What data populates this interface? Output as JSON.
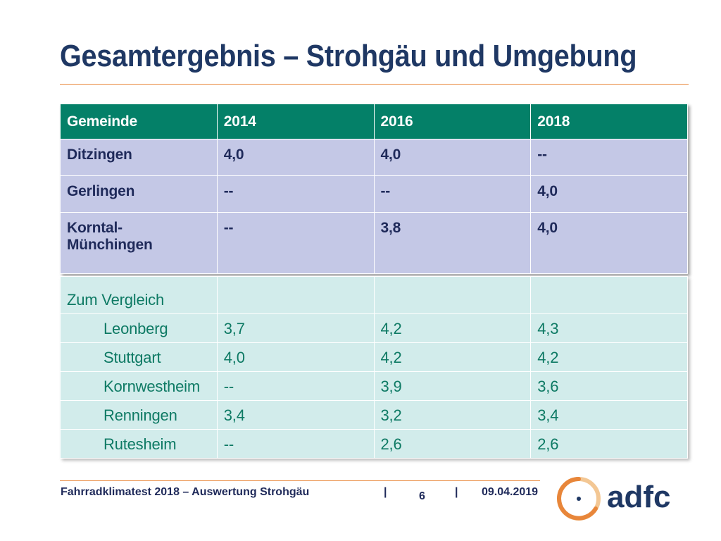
{
  "title": "Gesamtergebnis – Strohgäu und Umgebung",
  "table": {
    "headers": [
      "Gemeinde",
      "2014",
      "2016",
      "2018"
    ],
    "rows": [
      [
        "Ditzingen",
        "4,0",
        "4,0",
        "--"
      ],
      [
        "Gerlingen",
        "--",
        "--",
        "4,0"
      ],
      [
        "Korntal-",
        "--",
        "3,8",
        "4,0"
      ]
    ],
    "row3_line2": "Münchingen"
  },
  "comparison": {
    "label": "Zum Vergleich",
    "rows": [
      [
        "Leonberg",
        "3,7",
        "4,2",
        "4,3"
      ],
      [
        "Stuttgart",
        "4,0",
        "4,2",
        "4,2"
      ],
      [
        "Kornwestheim",
        "--",
        "3,9",
        "3,6"
      ],
      [
        "Renningen",
        "3,4",
        "3,2",
        "3,4"
      ],
      [
        "Rutesheim",
        "--",
        "2,6",
        "2,6"
      ]
    ]
  },
  "footer": {
    "left": "Fahrradklimatest 2018 – Auswertung Strohgäu",
    "sep": "|",
    "page": "6",
    "date": "09.04.2019"
  },
  "logo": {
    "text": "adfc",
    "color": "#1f3864",
    "ring_color": "#e8863a"
  },
  "colors": {
    "title": "#1f3864",
    "header_bg": "#048068",
    "row_bg": "#c4c8e6",
    "compare_bg": "#d2eceb",
    "compare_text": "#0e7a64",
    "accent_rule": "#e8863a"
  }
}
